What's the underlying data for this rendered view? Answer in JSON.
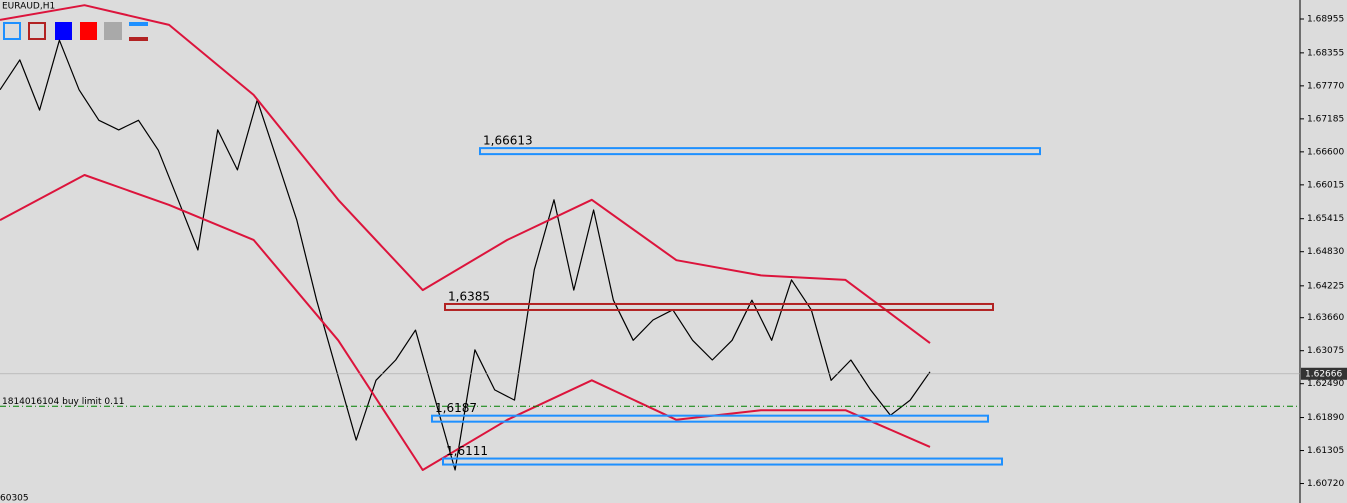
{
  "chart_data": {
    "type": "line",
    "symbol": "EURAUD,H1",
    "ylim": [
      1.60375,
      1.69292
    ],
    "yticks": [
      1.68955,
      1.68355,
      {
        "value": 1.6777,
        "label": "1.67770"
      },
      1.67185,
      {
        "value": 1.666,
        "label": "1.66600"
      },
      1.66015,
      1.65415,
      {
        "value": 1.6483,
        "label": "1.64830"
      },
      1.64225,
      {
        "value": 1.6366,
        "label": "1.63660"
      },
      1.63075,
      {
        "value": 1.6249,
        "label": "1.62490"
      },
      {
        "value": 1.6189,
        "label": "1.61890"
      },
      1.61305,
      {
        "value": 1.6072,
        "label": "1.60720"
      }
    ],
    "series": [
      {
        "color": "#000000",
        "values": [
          1.677,
          1.6823,
          1.6734,
          1.6858,
          1.677,
          1.6716,
          1.6699,
          1.6716,
          1.6663,
          1.6575,
          1.6486,
          1.6699,
          1.6628,
          1.6752,
          1.6646,
          1.6539,
          1.6397,
          1.6273,
          1.6149,
          1.6255,
          1.6291,
          1.6344,
          1.622,
          1.6096,
          1.6309,
          1.6238,
          1.622,
          1.6451,
          1.6575,
          1.6415,
          1.6557,
          1.6397,
          1.6326,
          1.6362,
          1.638,
          1.6326,
          1.6291,
          1.6326,
          1.6397,
          1.6326,
          1.6433,
          1.638,
          1.6255,
          1.6291,
          1.6238,
          1.6193,
          1.622,
          1.627
        ]
      },
      {
        "color": "#dc143c",
        "values": [
          1.6894,
          1.692,
          1.6885,
          1.6761,
          1.6575,
          1.6415,
          1.6504,
          1.6575,
          1.6468,
          1.6441,
          1.6433,
          1.6321
        ]
      },
      {
        "color": "#dc143c",
        "values": [
          1.6539,
          1.6619,
          1.6566,
          1.6504,
          1.6326,
          1.6096,
          1.6185,
          1.6255,
          1.6185,
          1.6202,
          1.6202,
          1.6137
        ]
      }
    ],
    "levels": [
      {
        "value": 1.66613,
        "label": "1,66613",
        "color": "#1e90ff"
      },
      {
        "value": 1.6385,
        "label": "1,6385",
        "color": "#b22222"
      },
      {
        "value": 1.6187,
        "label": "1,6187",
        "color": "#1e90ff"
      },
      {
        "value": 1.6111,
        "label": "1,6111",
        "color": "#1e90ff"
      }
    ],
    "current_price": 1.62666,
    "order": {
      "label": "1814016104 buy limit 0.11",
      "value": 1.6209,
      "color": "#008000"
    },
    "x_partial_label": "60305"
  }
}
